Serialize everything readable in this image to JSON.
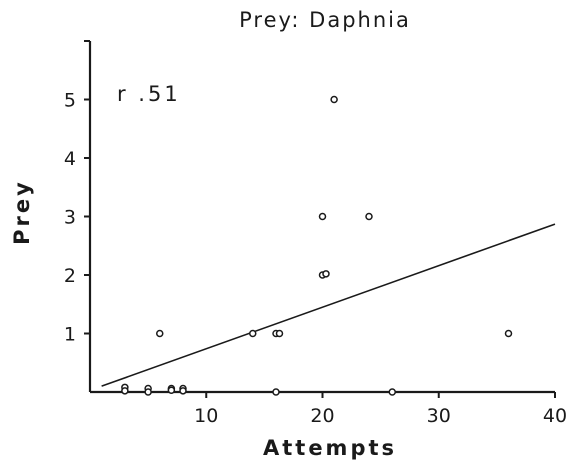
{
  "chart_data": {
    "type": "scatter",
    "title": "Prey:  Daphnia",
    "xlabel": "Attempts",
    "ylabel": "Prey",
    "annotation": "r .51",
    "xlim": [
      0,
      40
    ],
    "ylim": [
      0,
      6
    ],
    "x_ticks": [
      10,
      20,
      30,
      40
    ],
    "y_ticks": [
      1,
      2,
      3,
      4,
      5
    ],
    "grid": false,
    "points": [
      {
        "x": 3,
        "y": 0.08
      },
      {
        "x": 3,
        "y": 0.02
      },
      {
        "x": 5,
        "y": 0.06
      },
      {
        "x": 5,
        "y": 0.0
      },
      {
        "x": 7,
        "y": 0.06
      },
      {
        "x": 7,
        "y": 0.03
      },
      {
        "x": 8,
        "y": 0.06
      },
      {
        "x": 8,
        "y": 0.02
      },
      {
        "x": 6,
        "y": 1.0
      },
      {
        "x": 14,
        "y": 1.0
      },
      {
        "x": 16,
        "y": 1.0
      },
      {
        "x": 16.3,
        "y": 1.0
      },
      {
        "x": 16,
        "y": 0.0
      },
      {
        "x": 20,
        "y": 3.0
      },
      {
        "x": 20,
        "y": 2.0
      },
      {
        "x": 20.3,
        "y": 2.02
      },
      {
        "x": 21,
        "y": 5.0
      },
      {
        "x": 24,
        "y": 3.0
      },
      {
        "x": 26,
        "y": 0.0
      },
      {
        "x": 36,
        "y": 1.0
      }
    ],
    "trendline": {
      "x": [
        1,
        40
      ],
      "y": [
        0.1,
        2.87
      ]
    }
  }
}
